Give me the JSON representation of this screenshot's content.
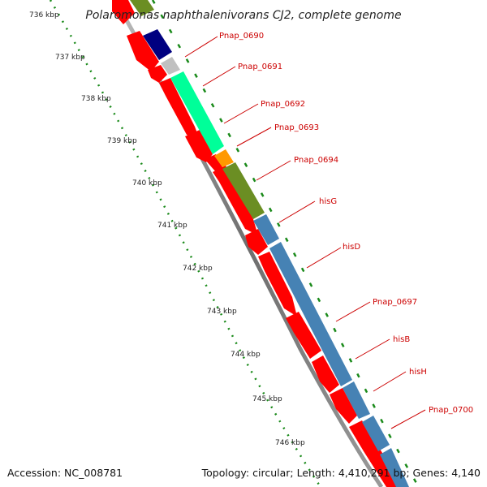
{
  "title": "Polaromonas naphthalenivorans CJ2, complete genome",
  "accession": "Accession: NC_008781",
  "topology": "Topology: circular; Length: 4,410,291 bp; Genes: 4,140",
  "ticks": [
    "736 kbp",
    "737 kbp",
    "738 kbp",
    "739 kbp",
    "740 kbp",
    "741 kbp",
    "742 kbp",
    "743 kbp",
    "744 kbp",
    "745 kbp",
    "746 kbp"
  ],
  "gene_labels": [
    "Pnap_0690",
    "Pnap_0691",
    "Pnap_0692",
    "Pnap_0693",
    "Pnap_0694",
    "hisG",
    "hisD",
    "Pnap_0697",
    "hisB",
    "hisH",
    "Pnap_0700"
  ],
  "colors": {
    "cds": "#ff0000",
    "backbone": "#808080",
    "tick": "#1a8a1a",
    "label": "#cc0000",
    "olive": "#6b8e23",
    "navy": "#000080",
    "grey": "#c0c0c0",
    "aquamarine": "#00ff99",
    "orange": "#ff9900",
    "steelblue": "#4682b4"
  }
}
